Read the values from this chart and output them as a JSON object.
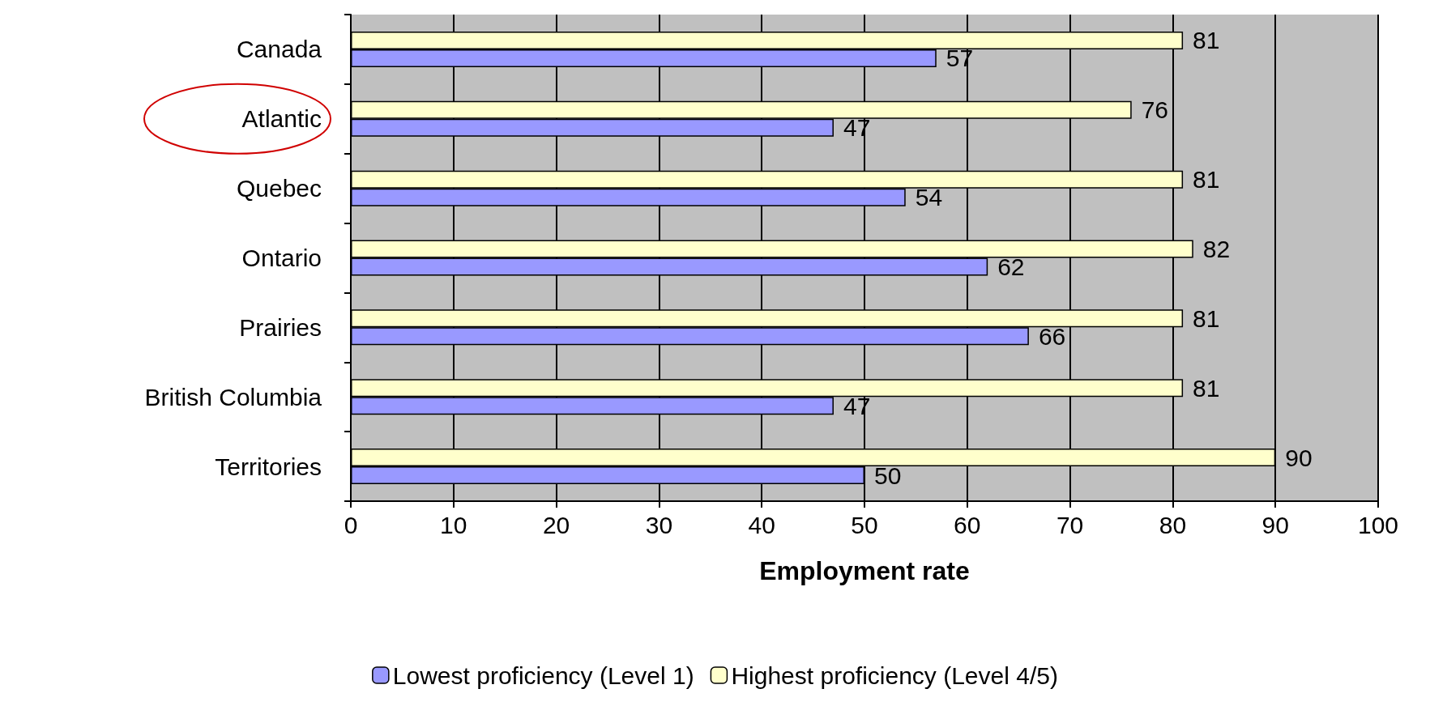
{
  "chart_data": {
    "type": "bar",
    "orientation": "horizontal",
    "xlabel": "Employment rate",
    "categories": [
      "Canada",
      "Atlantic",
      "Quebec",
      "Ontario",
      "Prairies",
      "British Columbia",
      "Territories"
    ],
    "series": [
      {
        "name": "Lowest proficiency (Level 1)",
        "color": "#9999ff",
        "values": [
          57,
          47,
          54,
          62,
          66,
          47,
          50
        ]
      },
      {
        "name": "Highest proficiency (Level 4/5)",
        "color": "#ffffcc",
        "values": [
          81,
          76,
          81,
          82,
          81,
          81,
          90
        ]
      }
    ],
    "xlim": [
      0,
      100
    ],
    "xticks": [
      0,
      10,
      20,
      30,
      40,
      50,
      60,
      70,
      80,
      90,
      100
    ],
    "grid": "x",
    "legend": "bottom",
    "data_labels": true
  }
}
